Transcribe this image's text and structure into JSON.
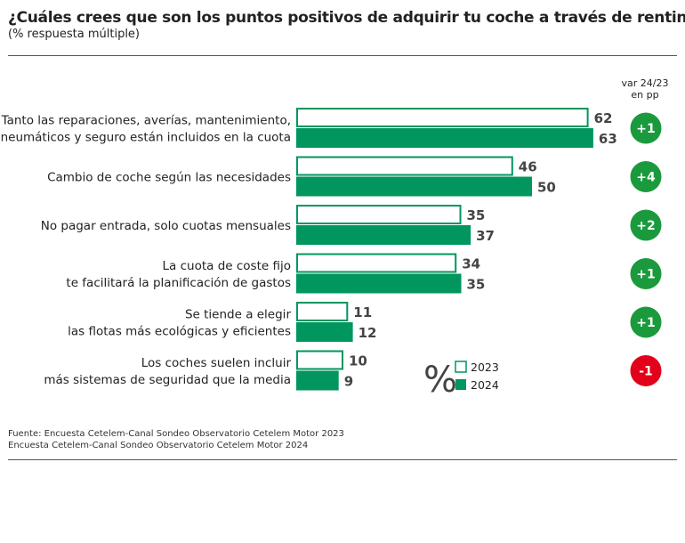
{
  "header": {
    "title": "¿Cuáles crees que son los puntos positivos de adquirir tu coche a través de renting?",
    "subtitle": "(% respuesta múltiple)"
  },
  "var_header": [
    "var 24/23",
    "en pp"
  ],
  "footnote": [
    "Fuente: Encuesta Cetelem-Canal Sondeo Observatorio Cetelem Motor 2023",
    "Encuesta Cetelem-Canal Sondeo Observatorio Cetelem Motor 2024"
  ],
  "colors": {
    "green": "#00965e",
    "positive_badge": "#1a9a3d",
    "negative_badge": "#e2001a",
    "outline_2023": "#00965e"
  },
  "chart_data": {
    "type": "bar",
    "orientation": "horizontal",
    "unit_symbol": "%",
    "categories": [
      [
        "Tanto las reparaciones, averías, mantenimiento,",
        "neumáticos y seguro están incluidos en la cuota"
      ],
      [
        "Cambio de coche según las necesidades"
      ],
      [
        "No pagar entrada, solo cuotas mensuales"
      ],
      [
        "La cuota de coste fijo",
        "te facilitará la planificación de gastos"
      ],
      [
        "Se tiende a elegir",
        "las flotas más ecológicas y eficientes"
      ],
      [
        "Los coches suelen incluir",
        "más sistemas de seguridad que la media"
      ]
    ],
    "series": [
      {
        "name": "2023",
        "style": "outline",
        "values": [
          62,
          46,
          35,
          34,
          11,
          10
        ]
      },
      {
        "name": "2024",
        "style": "filled",
        "values": [
          63,
          50,
          37,
          35,
          12,
          9
        ]
      }
    ],
    "variation": [
      "+1",
      "+4",
      "+2",
      "+1",
      "+1",
      "-1"
    ],
    "legend_position": "bottom-right",
    "grid": false
  }
}
